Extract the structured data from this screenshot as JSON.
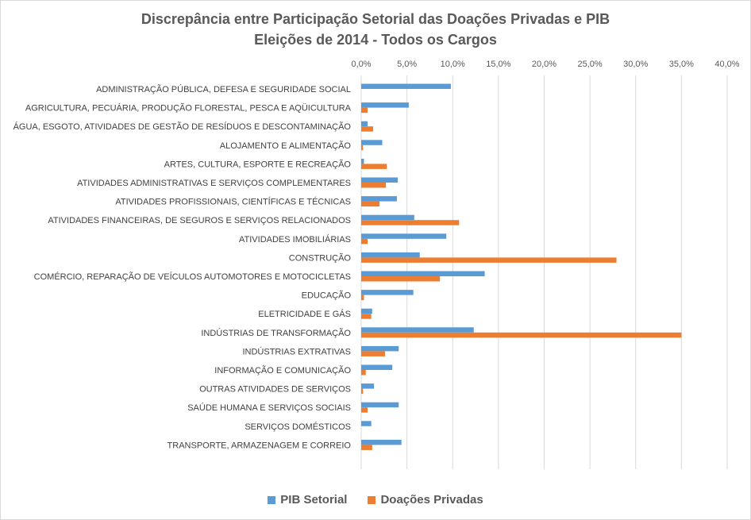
{
  "chart_data": {
    "type": "bar",
    "orientation": "horizontal",
    "title_lines": [
      "Discrepância entre Participação Setorial das Doações Privadas e PIB",
      "Eleições de 2014 - Todos os Cargos"
    ],
    "xlim": [
      0,
      40
    ],
    "x_ticks": [
      "0,0%",
      "5,0%",
      "10,0%",
      "15,0%",
      "20,0%",
      "25,0%",
      "30,0%",
      "35,0%",
      "40,0%"
    ],
    "x_tick_values": [
      0,
      5,
      10,
      15,
      20,
      25,
      30,
      35,
      40
    ],
    "x_axis_position": "top",
    "grid": true,
    "legend_position": "bottom",
    "categories": [
      "ADMINISTRAÇÃO PÚBLICA, DEFESA E SEGURIDADE SOCIAL",
      "AGRICULTURA, PECUÁRIA, PRODUÇÃO FLORESTAL, PESCA E AQÜICULTURA",
      "ÁGUA, ESGOTO, ATIVIDADES DE GESTÃO DE RESÍDUOS E DESCONTAMINAÇÃO",
      "ALOJAMENTO E ALIMENTAÇÃO",
      "ARTES, CULTURA, ESPORTE E RECREAÇÃO",
      "ATIVIDADES ADMINISTRATIVAS E SERVIÇOS COMPLEMENTARES",
      "ATIVIDADES PROFISSIONAIS, CIENTÍFICAS E TÉCNICAS",
      "ATIVIDADES FINANCEIRAS, DE SEGUROS E SERVIÇOS RELACIONADOS",
      "ATIVIDADES IMOBILIÁRIAS",
      "CONSTRUÇÃO",
      "COMÉRCIO, REPARAÇÃO DE VEÍCULOS AUTOMOTORES E MOTOCICLETAS",
      "EDUCAÇÃO",
      "ELETRICIDADE E GÁS",
      "INDÚSTRIAS DE TRANSFORMAÇÃO",
      "INDÚSTRIAS EXTRATIVAS",
      "INFORMAÇÃO E COMUNICAÇÃO",
      "OUTRAS ATIVIDADES DE SERVIÇOS",
      "SAÚDE HUMANA E SERVIÇOS SOCIAIS",
      "SERVIÇOS DOMÉSTICOS",
      "TRANSPORTE, ARMAZENAGEM E CORREIO"
    ],
    "series": [
      {
        "name": "PIB Setorial",
        "color": "#5b9bd5",
        "values": [
          9.8,
          5.2,
          0.7,
          2.3,
          0.3,
          4.0,
          3.9,
          5.8,
          9.3,
          6.4,
          13.5,
          5.7,
          1.2,
          12.3,
          4.1,
          3.4,
          1.4,
          4.1,
          1.1,
          4.4
        ]
      },
      {
        "name": "Doações Privadas",
        "color": "#ed7d31",
        "values": [
          0.0,
          0.7,
          1.3,
          0.2,
          2.8,
          2.7,
          2.0,
          10.7,
          0.7,
          27.9,
          8.6,
          0.3,
          1.1,
          35.0,
          2.6,
          0.5,
          0.2,
          0.7,
          0.0,
          1.2
        ]
      }
    ]
  }
}
